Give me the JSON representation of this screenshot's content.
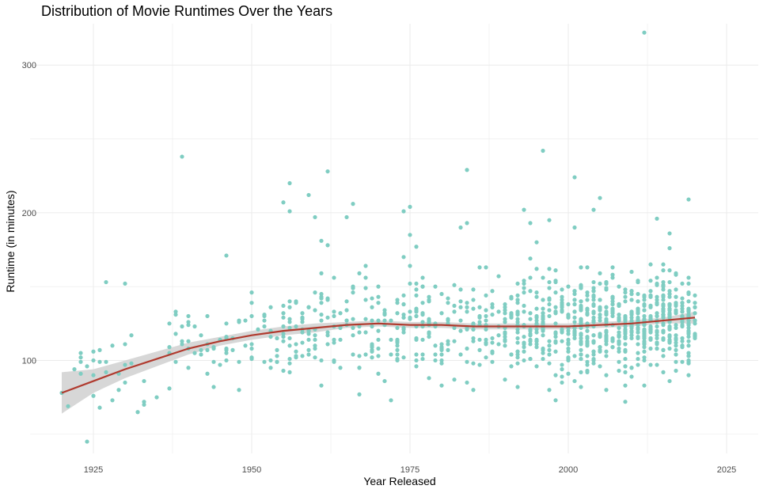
{
  "chart_data": {
    "type": "scatter",
    "title": "Distribution of Movie Runtimes Over the Years",
    "xlabel": "Year Released",
    "ylabel": "Runtime (in minutes)",
    "xlim": [
      1915,
      2030
    ],
    "ylim": [
      37,
      328
    ],
    "x_ticks": [
      1925,
      1950,
      1975,
      2000,
      2025
    ],
    "y_ticks": [
      100,
      200,
      300
    ],
    "grid": true,
    "colors": {
      "points": "#7fcdc2",
      "trend": "#b03a2e",
      "band": "#d3d3d3",
      "grid": "#ebebeb"
    },
    "outliers": [
      [
        1920,
        78
      ],
      [
        1921,
        69
      ],
      [
        1922,
        94
      ],
      [
        1924,
        45
      ],
      [
        1925,
        76
      ],
      [
        1926,
        68
      ],
      [
        1927,
        153
      ],
      [
        1928,
        73
      ],
      [
        1928,
        110
      ],
      [
        1930,
        152
      ],
      [
        1931,
        117
      ],
      [
        1932,
        65
      ],
      [
        1933,
        70
      ],
      [
        1933,
        72
      ],
      [
        1935,
        75
      ],
      [
        1939,
        238
      ],
      [
        1940,
        130
      ],
      [
        1946,
        171
      ],
      [
        1948,
        80
      ],
      [
        1955,
        207
      ],
      [
        1956,
        220
      ],
      [
        1956,
        201
      ],
      [
        1959,
        212
      ],
      [
        1960,
        197
      ],
      [
        1961,
        181
      ],
      [
        1962,
        228
      ],
      [
        1962,
        178
      ],
      [
        1965,
        197
      ],
      [
        1966,
        206
      ],
      [
        1967,
        77
      ],
      [
        1972,
        73
      ],
      [
        1974,
        201
      ],
      [
        1975,
        204
      ],
      [
        1975,
        185
      ],
      [
        1976,
        177
      ],
      [
        1983,
        190
      ],
      [
        1984,
        229
      ],
      [
        1984,
        193
      ],
      [
        1985,
        80
      ],
      [
        1993,
        202
      ],
      [
        1994,
        193
      ],
      [
        1995,
        180
      ],
      [
        1996,
        242
      ],
      [
        1997,
        195
      ],
      [
        1998,
        73
      ],
      [
        2001,
        224
      ],
      [
        2001,
        190
      ],
      [
        2004,
        202
      ],
      [
        2005,
        210
      ],
      [
        2009,
        72
      ],
      [
        2012,
        322
      ],
      [
        2014,
        196
      ],
      [
        2019,
        209
      ],
      [
        2016,
        186
      ],
      [
        2016,
        176
      ]
    ],
    "cloud": {
      "description_bins": [
        {
          "x_from": 1922,
          "x_to": 1937,
          "count": 20,
          "y_mean": 95,
          "y_sd": 12
        },
        {
          "x_from": 1937,
          "x_to": 1950,
          "count": 45,
          "y_mean": 112,
          "y_sd": 15
        },
        {
          "x_from": 1950,
          "x_to": 1960,
          "count": 70,
          "y_mean": 120,
          "y_sd": 22
        },
        {
          "x_from": 1960,
          "x_to": 1975,
          "count": 110,
          "y_mean": 123,
          "y_sd": 25
        },
        {
          "x_from": 1975,
          "x_to": 1990,
          "count": 140,
          "y_mean": 123,
          "y_sd": 24
        },
        {
          "x_from": 1990,
          "x_to": 2000,
          "count": 170,
          "y_mean": 122,
          "y_sd": 24
        },
        {
          "x_from": 2000,
          "x_to": 2010,
          "count": 260,
          "y_mean": 124,
          "y_sd": 23
        },
        {
          "x_from": 2010,
          "x_to": 2020,
          "count": 300,
          "y_mean": 127,
          "y_sd": 20
        }
      ],
      "y_min": 80,
      "y_max": 170
    },
    "trend_line": [
      [
        1920,
        78
      ],
      [
        1925,
        86
      ],
      [
        1930,
        94
      ],
      [
        1935,
        101
      ],
      [
        1940,
        108
      ],
      [
        1945,
        113
      ],
      [
        1950,
        117
      ],
      [
        1955,
        120
      ],
      [
        1960,
        122
      ],
      [
        1965,
        124
      ],
      [
        1970,
        125
      ],
      [
        1975,
        124
      ],
      [
        1980,
        124
      ],
      [
        1985,
        123
      ],
      [
        1990,
        123
      ],
      [
        1995,
        123
      ],
      [
        2000,
        123
      ],
      [
        2005,
        124
      ],
      [
        2010,
        125
      ],
      [
        2015,
        127
      ],
      [
        2020,
        129
      ]
    ],
    "confidence_band": [
      [
        1920,
        64,
        92
      ],
      [
        1925,
        78,
        94
      ],
      [
        1930,
        88,
        100
      ],
      [
        1935,
        96,
        106
      ],
      [
        1940,
        104,
        112
      ],
      [
        1945,
        110,
        116
      ],
      [
        1950,
        114,
        120
      ],
      [
        1955,
        117,
        123
      ],
      [
        1960,
        119,
        125
      ],
      [
        1965,
        122,
        126
      ],
      [
        1970,
        123,
        127
      ],
      [
        1975,
        122,
        126
      ],
      [
        1980,
        122,
        126
      ],
      [
        1985,
        121,
        125
      ],
      [
        1990,
        121,
        125
      ],
      [
        1995,
        121,
        125
      ],
      [
        2000,
        121,
        125
      ],
      [
        2005,
        122,
        126
      ],
      [
        2010,
        123,
        127
      ],
      [
        2015,
        125,
        129
      ],
      [
        2020,
        125,
        133
      ]
    ]
  }
}
